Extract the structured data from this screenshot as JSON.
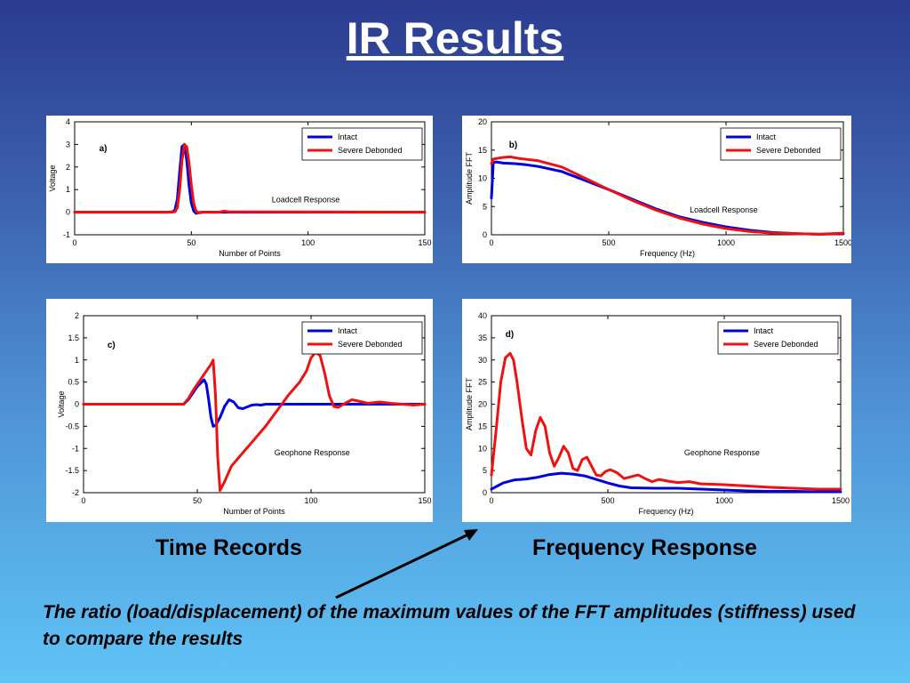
{
  "slide": {
    "title": "IR Results",
    "caption_left": "Time Records",
    "caption_right": "Frequency Response",
    "note": "The ratio (load/displacement) of the maximum values of the FFT amplitudes (stiffness) used to compare the results"
  },
  "chart_data": [
    {
      "type": "line",
      "panel_label": "a)",
      "annotation": "Loadcell Response",
      "xlabel": "Number of Points",
      "ylabel": "Voltage",
      "xlim": [
        0,
        150
      ],
      "ylim": [
        -1,
        4
      ],
      "xticks": [
        0,
        50,
        100,
        150
      ],
      "yticks": [
        -1,
        0,
        1,
        2,
        3,
        4
      ],
      "legend_position": "top-right",
      "series": [
        {
          "name": "Intact",
          "color": "#0000dd",
          "x": [
            0,
            40,
            42,
            43,
            44,
            45,
            46,
            47,
            48,
            49,
            50,
            51,
            52,
            53,
            55,
            60,
            150
          ],
          "y": [
            0,
            0,
            0.02,
            0.1,
            0.6,
            1.8,
            2.9,
            3.0,
            2.3,
            1.2,
            0.4,
            0.05,
            -0.05,
            -0.03,
            0,
            0,
            0
          ]
        },
        {
          "name": "Severe Debonded",
          "color": "#ee1111",
          "x": [
            0,
            41,
            43,
            44,
            45,
            46,
            47,
            48,
            49,
            50,
            51,
            52,
            53,
            54,
            56,
            62,
            64,
            66,
            150
          ],
          "y": [
            0,
            0,
            0.02,
            0.2,
            1.0,
            2.3,
            3.0,
            2.9,
            2.2,
            1.2,
            0.4,
            0.05,
            -0.02,
            0,
            0,
            0,
            0.05,
            0.02,
            0
          ]
        }
      ]
    },
    {
      "type": "line",
      "panel_label": "b)",
      "annotation": "Loadcell Response",
      "xlabel": "Frequency (Hz)",
      "ylabel": "Amplitude FFT",
      "xlim": [
        0,
        1500
      ],
      "ylim": [
        0,
        20
      ],
      "xticks": [
        0,
        500,
        1000,
        1500
      ],
      "yticks": [
        0,
        5,
        10,
        15,
        20
      ],
      "legend_position": "top-right",
      "series": [
        {
          "name": "Intact",
          "color": "#0000dd",
          "x": [
            0,
            8,
            20,
            50,
            100,
            150,
            200,
            300,
            400,
            500,
            600,
            700,
            800,
            900,
            1000,
            1100,
            1200,
            1300,
            1400,
            1500
          ],
          "y": [
            6.5,
            12.8,
            12.9,
            12.7,
            12.6,
            12.4,
            12.1,
            11.2,
            9.6,
            8.0,
            6.3,
            4.6,
            3.2,
            2.2,
            1.4,
            0.8,
            0.4,
            0.2,
            0.1,
            0.2
          ]
        },
        {
          "name": "Severe Debonded",
          "color": "#ee1111",
          "x": [
            0,
            8,
            20,
            50,
            80,
            120,
            200,
            300,
            400,
            500,
            600,
            700,
            800,
            900,
            1000,
            1100,
            1200,
            1300,
            1400,
            1500
          ],
          "y": [
            12.6,
            13.4,
            13.5,
            13.7,
            13.8,
            13.5,
            13.1,
            12.0,
            10.0,
            8.0,
            6.1,
            4.4,
            3.0,
            1.9,
            1.1,
            0.6,
            0.3,
            0.2,
            0.1,
            0.3
          ]
        }
      ]
    },
    {
      "type": "line",
      "panel_label": "c)",
      "annotation": "Geophone Response",
      "xlabel": "Number of Points",
      "ylabel": "Voltage",
      "xlim": [
        0,
        150
      ],
      "ylim": [
        -2,
        2
      ],
      "xticks": [
        0,
        50,
        100,
        150
      ],
      "yticks": [
        -2,
        -1.5,
        -1,
        -0.5,
        0,
        0.5,
        1,
        1.5,
        2
      ],
      "legend_position": "top-right",
      "series": [
        {
          "name": "Intact",
          "color": "#0000dd",
          "x": [
            0,
            44,
            46,
            48,
            50,
            52,
            53,
            54,
            55,
            56,
            57,
            58,
            60,
            62,
            64,
            66,
            68,
            70,
            72,
            74,
            76,
            78,
            80,
            150
          ],
          "y": [
            0,
            0,
            0.1,
            0.25,
            0.4,
            0.5,
            0.55,
            0.45,
            0.1,
            -0.3,
            -0.5,
            -0.48,
            -0.3,
            -0.05,
            0.1,
            0.05,
            -0.08,
            -0.1,
            -0.06,
            -0.02,
            -0.01,
            -0.02,
            0,
            0
          ]
        },
        {
          "name": "Severe Debonded",
          "color": "#ee1111",
          "x": [
            0,
            44,
            46,
            48,
            50,
            52,
            54,
            56,
            57,
            58,
            59,
            60,
            62,
            65,
            70,
            75,
            80,
            85,
            90,
            95,
            98,
            100,
            102,
            104,
            106,
            108,
            110,
            112,
            115,
            118,
            120,
            125,
            130,
            135,
            140,
            145,
            150
          ],
          "y": [
            0,
            0,
            0.12,
            0.3,
            0.45,
            0.6,
            0.75,
            0.9,
            1.0,
            0.2,
            -1.2,
            -1.95,
            -1.75,
            -1.4,
            -1.1,
            -0.8,
            -0.5,
            -0.15,
            0.2,
            0.5,
            0.75,
            1.05,
            1.17,
            1.1,
            0.7,
            0.2,
            -0.05,
            -0.07,
            0.02,
            0.1,
            0.08,
            0.02,
            0.05,
            0.02,
            0,
            -0.02,
            0
          ]
        }
      ]
    },
    {
      "type": "line",
      "panel_label": "d)",
      "annotation": "Geophone Response",
      "xlabel": "Frequency (Hz)",
      "ylabel": "Amplitude FFT",
      "xlim": [
        0,
        1500
      ],
      "ylim": [
        0,
        40
      ],
      "xticks": [
        0,
        500,
        1000,
        1500
      ],
      "yticks": [
        0,
        5,
        10,
        15,
        20,
        25,
        30,
        35,
        40
      ],
      "legend_position": "top-right",
      "series": [
        {
          "name": "Intact",
          "color": "#0000dd",
          "x": [
            0,
            50,
            100,
            150,
            200,
            250,
            300,
            350,
            400,
            450,
            500,
            550,
            600,
            700,
            800,
            900,
            1000,
            1100,
            1200,
            1300,
            1400,
            1500
          ],
          "y": [
            0.8,
            2.2,
            2.9,
            3.1,
            3.5,
            4.1,
            4.4,
            4.2,
            3.8,
            3.0,
            2.2,
            1.5,
            1.1,
            1.0,
            1.0,
            0.8,
            0.6,
            0.4,
            0.3,
            0.3,
            0.2,
            0.2
          ]
        },
        {
          "name": "Severe Debonded",
          "color": "#ee1111",
          "x": [
            0,
            20,
            40,
            60,
            80,
            95,
            110,
            130,
            150,
            170,
            190,
            210,
            230,
            250,
            270,
            290,
            310,
            330,
            350,
            370,
            390,
            410,
            430,
            450,
            470,
            490,
            510,
            540,
            570,
            600,
            630,
            660,
            690,
            720,
            760,
            800,
            850,
            900,
            950,
            1000,
            1100,
            1200,
            1300,
            1400,
            1500
          ],
          "y": [
            4,
            14,
            25,
            30.5,
            31.5,
            30,
            25,
            17,
            10,
            8.5,
            14,
            17,
            15,
            9,
            6,
            8,
            10.5,
            9,
            5.5,
            5,
            7.5,
            8,
            6,
            4,
            3.8,
            4.8,
            5.2,
            4.5,
            3.2,
            3.6,
            4.0,
            3.2,
            2.5,
            3.0,
            2.6,
            2.3,
            2.5,
            2.0,
            1.9,
            1.8,
            1.5,
            1.2,
            1.0,
            0.8,
            0.8
          ]
        }
      ]
    }
  ]
}
